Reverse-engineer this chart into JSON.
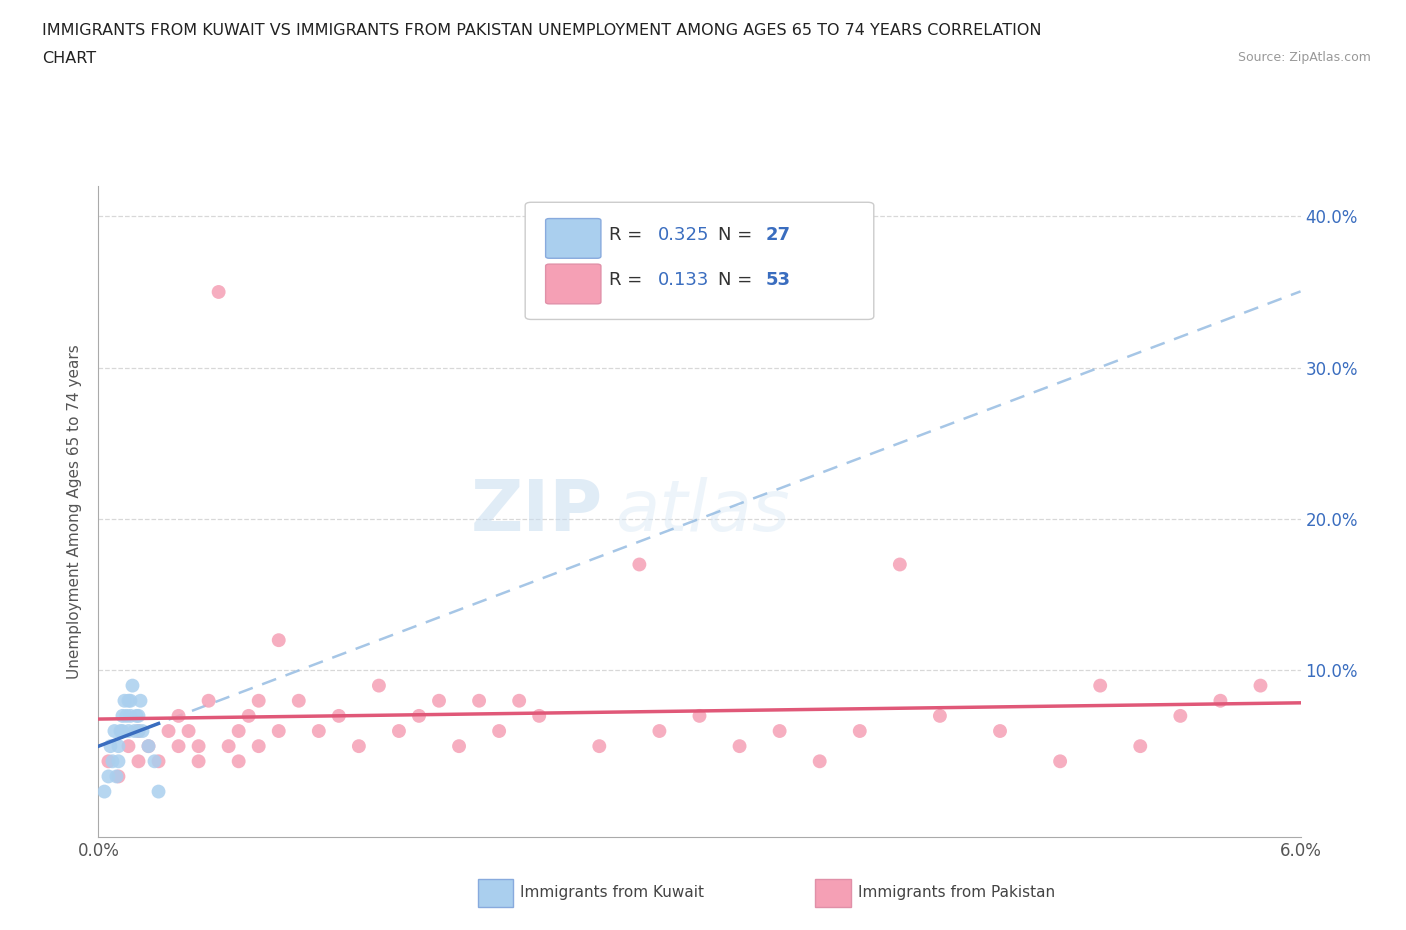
{
  "title_line1": "IMMIGRANTS FROM KUWAIT VS IMMIGRANTS FROM PAKISTAN UNEMPLOYMENT AMONG AGES 65 TO 74 YEARS CORRELATION",
  "title_line2": "CHART",
  "source": "Source: ZipAtlas.com",
  "ylabel": "Unemployment Among Ages 65 to 74 years",
  "watermark_zip": "ZIP",
  "watermark_atlas": "atlas",
  "x_min": 0.0,
  "x_max": 0.06,
  "y_min": -0.01,
  "y_max": 0.42,
  "kuwait_R": 0.325,
  "kuwait_N": 27,
  "pakistan_R": 0.133,
  "pakistan_N": 53,
  "kuwait_color": "#aacfee",
  "pakistan_color": "#f5a0b5",
  "kuwait_line_color": "#3a6dbf",
  "pakistan_line_color": "#e05878",
  "kuwait_dash_color": "#90b8e0",
  "kuwait_scatter_x": [
    0.0003,
    0.0005,
    0.0006,
    0.0007,
    0.0008,
    0.0009,
    0.001,
    0.001,
    0.0011,
    0.0012,
    0.0012,
    0.0013,
    0.0014,
    0.0015,
    0.0015,
    0.0016,
    0.0016,
    0.0017,
    0.0018,
    0.0019,
    0.002,
    0.002,
    0.0021,
    0.0022,
    0.0025,
    0.0028,
    0.003
  ],
  "kuwait_scatter_y": [
    0.02,
    0.03,
    0.05,
    0.04,
    0.06,
    0.03,
    0.05,
    0.04,
    0.06,
    0.06,
    0.07,
    0.08,
    0.07,
    0.06,
    0.08,
    0.07,
    0.08,
    0.09,
    0.06,
    0.07,
    0.07,
    0.06,
    0.08,
    0.06,
    0.05,
    0.04,
    0.02
  ],
  "pakistan_scatter_x": [
    0.0005,
    0.001,
    0.0015,
    0.002,
    0.002,
    0.0025,
    0.003,
    0.0035,
    0.004,
    0.004,
    0.0045,
    0.005,
    0.005,
    0.0055,
    0.006,
    0.0065,
    0.007,
    0.007,
    0.0075,
    0.008,
    0.008,
    0.009,
    0.009,
    0.01,
    0.011,
    0.012,
    0.013,
    0.014,
    0.015,
    0.016,
    0.017,
    0.018,
    0.019,
    0.02,
    0.021,
    0.022,
    0.025,
    0.027,
    0.028,
    0.03,
    0.032,
    0.034,
    0.036,
    0.038,
    0.04,
    0.042,
    0.045,
    0.048,
    0.05,
    0.052,
    0.054,
    0.056,
    0.058
  ],
  "pakistan_scatter_y": [
    0.04,
    0.03,
    0.05,
    0.04,
    0.06,
    0.05,
    0.04,
    0.06,
    0.05,
    0.07,
    0.06,
    0.04,
    0.05,
    0.08,
    0.35,
    0.05,
    0.06,
    0.04,
    0.07,
    0.05,
    0.08,
    0.06,
    0.12,
    0.08,
    0.06,
    0.07,
    0.05,
    0.09,
    0.06,
    0.07,
    0.08,
    0.05,
    0.08,
    0.06,
    0.08,
    0.07,
    0.05,
    0.17,
    0.06,
    0.07,
    0.05,
    0.06,
    0.04,
    0.06,
    0.17,
    0.07,
    0.06,
    0.04,
    0.09,
    0.05,
    0.07,
    0.08,
    0.09
  ],
  "background_color": "#ffffff",
  "grid_color": "#d8d8d8",
  "title_color": "#222222",
  "right_axis_color": "#3a6dbf"
}
